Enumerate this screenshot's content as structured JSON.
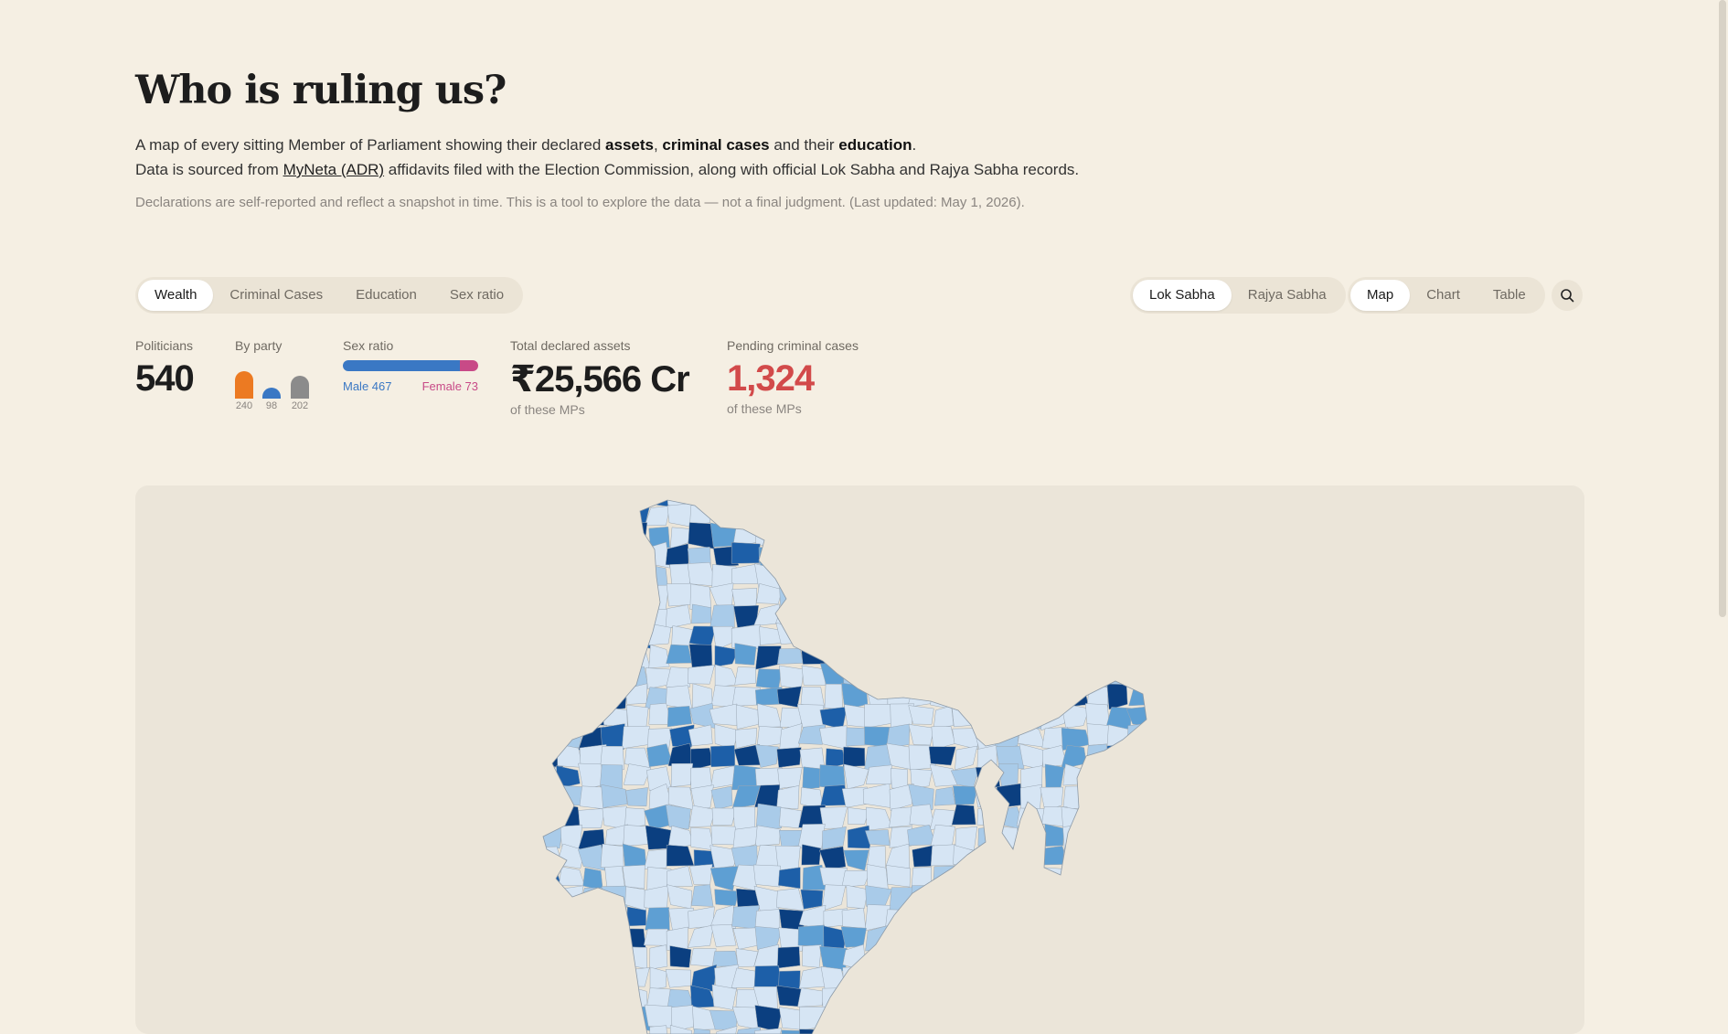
{
  "header": {
    "title": "Who is ruling us?",
    "lead1_a": "A map of every sitting Member of Parliament showing their declared ",
    "lead1_assets": "assets",
    "lead1_comma": ", ",
    "lead1_criminal": "criminal cases",
    "lead1_and": " and their ",
    "lead1_education": "education",
    "lead1_end": ".",
    "lead2_a": "Data is sourced from ",
    "lead2_link": "MyNeta (ADR)",
    "lead2_b": " affidavits filed with the Election Commission, along with official Lok Sabha and Rajya Sabha records.",
    "note": "Declarations are self-reported and reflect a snapshot in time. This is a tool to explore the data — not a final judgment. (Last updated: May 1, 2026)."
  },
  "metric_tabs": [
    "Wealth",
    "Criminal Cases",
    "Education",
    "Sex ratio"
  ],
  "metric_active": "Wealth",
  "house_tabs": [
    "Lok Sabha",
    "Rajya Sabha"
  ],
  "house_active": "Lok Sabha",
  "view_tabs": [
    "Map",
    "Chart",
    "Table"
  ],
  "view_active": "Map",
  "stats": {
    "politicians_label": "Politicians",
    "politicians_value": "540",
    "party_label": "By party",
    "parties": [
      {
        "count": "240",
        "color": "#ec7a22"
      },
      {
        "count": "98",
        "color": "#3a78c4"
      },
      {
        "count": "202",
        "color": "#8b8b8b"
      }
    ],
    "sex_label": "Sex ratio",
    "male": "Male 467",
    "female": "Female 73",
    "male_count": 467,
    "female_count": 73,
    "male_color": "#3a78c4",
    "female_color": "#c84a87",
    "assets_label": "Total declared assets",
    "assets_value": "₹25,566 Cr",
    "assets_sub": "of these MPs",
    "criminal_label": "Pending criminal cases",
    "criminal_value": "1,324",
    "criminal_sub": "of these MPs"
  },
  "map": {
    "colors": [
      "#d6e5f4",
      "#a9cbe9",
      "#5e9fd3",
      "#1d5fa8",
      "#0b3f80"
    ]
  }
}
